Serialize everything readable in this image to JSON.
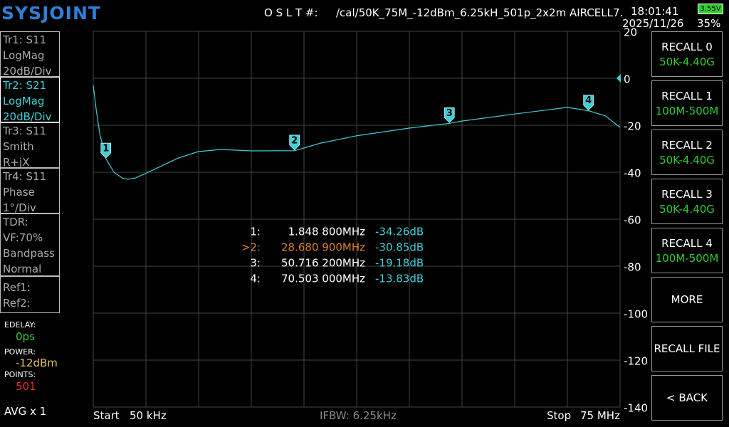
{
  "header": {
    "logo": "SYSJOINT",
    "cal_label": "O S L T #:",
    "cal_file": "/cal/50K_75M_-12dBm_6.25kH_501p_2x2m AIRCELL7.",
    "time": "18:01:41",
    "date": "2025/11/26",
    "battery_voltage": "3.55V",
    "battery_percent": "35%"
  },
  "traces": [
    {
      "lines": [
        "Tr1:  S11",
        "LogMag",
        "20dB/Div"
      ],
      "active": false
    },
    {
      "lines": [
        "Tr2:  S21",
        "LogMag",
        "20dB/Div"
      ],
      "active": true
    },
    {
      "lines": [
        "Tr3:  S11",
        "Smith",
        "R+jX"
      ],
      "active": false
    },
    {
      "lines": [
        "Tr4:  S11",
        "Phase",
        "1°/Div"
      ],
      "active": false
    }
  ],
  "tdr": [
    "TDR:",
    "VF:70%",
    "Bandpass",
    "Normal"
  ],
  "refs": [
    "Ref1:",
    "Ref2:"
  ],
  "status": {
    "edelay_label": "EDELAY:",
    "edelay": "0ps",
    "power_label": "POWER:",
    "power": "-12dBm",
    "points_label": "POINTS:",
    "points": "501",
    "avg": "AVG x 1"
  },
  "footer": {
    "start_label": "Start",
    "start_value": "50 kHz",
    "ifbw": "IFBW: 6.25kHz",
    "stop_label": "Stop",
    "stop_value": "75 MHz"
  },
  "buttons": [
    {
      "label": "RECALL 0",
      "sub": "50K-4.40G"
    },
    {
      "label": "RECALL 1",
      "sub": "100M-500M"
    },
    {
      "label": "RECALL 2",
      "sub": "50K-4.40G"
    },
    {
      "label": "RECALL 3",
      "sub": "50K-4.40G"
    },
    {
      "label": "RECALL 4",
      "sub": "100M-500M"
    },
    {
      "label": "MORE"
    },
    {
      "label": "RECALL FILE"
    },
    {
      "label": "< BACK"
    }
  ],
  "chart_data": {
    "type": "line",
    "color": "#3fd0d8",
    "grid": true,
    "x": [
      0.05,
      0.5,
      1.0,
      1.85,
      3.0,
      4.2,
      5.0,
      6.0,
      7.5,
      10,
      12.1,
      15.0,
      18.2,
      22.5,
      28.68,
      30.0,
      32.4,
      37.5,
      45.0,
      50.72,
      52.5,
      60.0,
      67.5,
      70.5,
      72.9,
      75.0
    ],
    "values": [
      -3,
      -14,
      -24,
      -34.26,
      -40,
      -42.5,
      -43,
      -42.5,
      -40.5,
      -37,
      -34,
      -31.2,
      -30.3,
      -30.9,
      -30.85,
      -29.7,
      -27.6,
      -24.5,
      -21.2,
      -19.18,
      -18.2,
      -15.2,
      -12.4,
      -13.83,
      -16,
      -20.9
    ],
    "xlim": [
      0.05,
      75
    ],
    "ylim": [
      -140,
      20
    ],
    "yticks": [
      20,
      0,
      -20,
      -40,
      -60,
      -80,
      -100,
      -120,
      -140
    ],
    "reference_level": 0,
    "markers": [
      {
        "id": "1",
        "row_label": "1:",
        "freq": 1.8488,
        "freq_label": "1.848 800MHz",
        "value": -34.26,
        "value_label": "-34.26dB",
        "active": false
      },
      {
        "id": "2",
        "row_label": ">2:",
        "freq": 28.6809,
        "freq_label": "28.680 900MHz",
        "value": -30.85,
        "value_label": "-30.85dB",
        "active": true
      },
      {
        "id": "3",
        "row_label": "3:",
        "freq": 50.7162,
        "freq_label": "50.716 200MHz",
        "value": -19.18,
        "value_label": "-19.18dB",
        "active": false
      },
      {
        "id": "4",
        "row_label": "4:",
        "freq": 70.503,
        "freq_label": "70.503 000MHz",
        "value": -13.83,
        "value_label": "-13.83dB",
        "active": false
      }
    ]
  }
}
